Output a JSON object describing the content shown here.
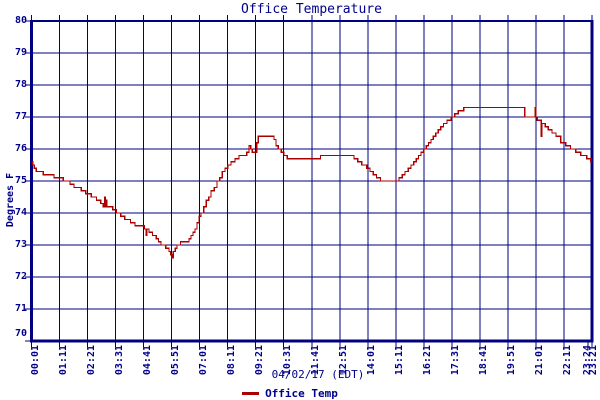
{
  "chart_data": {
    "type": "line",
    "line_style": "step-after",
    "title": "Office Temperature",
    "ylabel": "Degrees F",
    "xlabel": "04/02/17 (EDT)",
    "legend_position": "bottom-center",
    "legend": [
      "Office Temp"
    ],
    "grid": true,
    "ylim": [
      70,
      80
    ],
    "y_tick_interval": 1,
    "y_tick_labels": [
      "70",
      "71",
      "72",
      "73",
      "74",
      "75",
      "76",
      "77",
      "78",
      "79",
      "80"
    ],
    "x_start_minute": 1,
    "x_end_minute": 1400,
    "x_tick_interval_minutes": 70,
    "x_tick_labels": [
      "00:01",
      "01:11",
      "02:21",
      "03:31",
      "04:41",
      "05:51",
      "07:01",
      "08:11",
      "09:21",
      "10:31",
      "11:41",
      "12:51",
      "14:01",
      "15:11",
      "16:21",
      "17:31",
      "18:41",
      "19:51",
      "21:01",
      "22:11",
      "23:21"
    ],
    "x_overlap_end_label": "23:24",
    "colors": {
      "line": "#aa0000",
      "grid": "#000080",
      "frame": "#000080",
      "text": "#00008b",
      "background": "#ffffff"
    },
    "series": [
      {
        "name": "Office Temp",
        "units": "degrees F",
        "points_minute_temp": [
          [
            1,
            75.6
          ],
          [
            4,
            75.5
          ],
          [
            8,
            75.4
          ],
          [
            13,
            75.3
          ],
          [
            30,
            75.2
          ],
          [
            57,
            75.1
          ],
          [
            80,
            75.0
          ],
          [
            97,
            74.9
          ],
          [
            107,
            74.8
          ],
          [
            125,
            74.7
          ],
          [
            136,
            74.6
          ],
          [
            150,
            74.5
          ],
          [
            163,
            74.4
          ],
          [
            174,
            74.3
          ],
          [
            180,
            74.2
          ],
          [
            183,
            74.5
          ],
          [
            185,
            74.2
          ],
          [
            187,
            74.4
          ],
          [
            189,
            74.2
          ],
          [
            204,
            74.1
          ],
          [
            213,
            74.0
          ],
          [
            224,
            73.9
          ],
          [
            234,
            73.8
          ],
          [
            248,
            73.7
          ],
          [
            259,
            73.6
          ],
          [
            283,
            73.5
          ],
          [
            287,
            73.3
          ],
          [
            289,
            73.5
          ],
          [
            294,
            73.4
          ],
          [
            303,
            73.3
          ],
          [
            312,
            73.2
          ],
          [
            318,
            73.1
          ],
          [
            324,
            73.0
          ],
          [
            336,
            72.9
          ],
          [
            344,
            72.8
          ],
          [
            348,
            72.7
          ],
          [
            351,
            72.6
          ],
          [
            355,
            72.8
          ],
          [
            360,
            72.9
          ],
          [
            364,
            73.0
          ],
          [
            373,
            73.1
          ],
          [
            394,
            73.2
          ],
          [
            399,
            73.3
          ],
          [
            404,
            73.4
          ],
          [
            409,
            73.5
          ],
          [
            414,
            73.7
          ],
          [
            419,
            73.9
          ],
          [
            424,
            74.0
          ],
          [
            431,
            74.2
          ],
          [
            437,
            74.4
          ],
          [
            443,
            74.5
          ],
          [
            449,
            74.7
          ],
          [
            457,
            74.8
          ],
          [
            464,
            75.0
          ],
          [
            471,
            75.1
          ],
          [
            477,
            75.3
          ],
          [
            484,
            75.4
          ],
          [
            491,
            75.5
          ],
          [
            499,
            75.6
          ],
          [
            509,
            75.7
          ],
          [
            519,
            75.8
          ],
          [
            538,
            75.9
          ],
          [
            544,
            76.1
          ],
          [
            548,
            76.0
          ],
          [
            552,
            75.9
          ],
          [
            563,
            76.2
          ],
          [
            567,
            76.4
          ],
          [
            599,
            76.4
          ],
          [
            606,
            76.3
          ],
          [
            611,
            76.1
          ],
          [
            617,
            76.0
          ],
          [
            624,
            75.9
          ],
          [
            631,
            75.8
          ],
          [
            639,
            75.7
          ],
          [
            722,
            75.8
          ],
          [
            790,
            75.8
          ],
          [
            806,
            75.7
          ],
          [
            815,
            75.6
          ],
          [
            825,
            75.5
          ],
          [
            838,
            75.4
          ],
          [
            846,
            75.3
          ],
          [
            854,
            75.2
          ],
          [
            862,
            75.1
          ],
          [
            872,
            75.0
          ],
          [
            918,
            75.1
          ],
          [
            926,
            75.2
          ],
          [
            933,
            75.3
          ],
          [
            941,
            75.4
          ],
          [
            948,
            75.5
          ],
          [
            955,
            75.6
          ],
          [
            961,
            75.7
          ],
          [
            967,
            75.8
          ],
          [
            973,
            75.9
          ],
          [
            980,
            76.0
          ],
          [
            986,
            76.1
          ],
          [
            992,
            76.2
          ],
          [
            998,
            76.3
          ],
          [
            1004,
            76.4
          ],
          [
            1010,
            76.5
          ],
          [
            1016,
            76.6
          ],
          [
            1022,
            76.7
          ],
          [
            1029,
            76.8
          ],
          [
            1038,
            76.9
          ],
          [
            1048,
            77.0
          ],
          [
            1057,
            77.1
          ],
          [
            1066,
            77.2
          ],
          [
            1080,
            77.3
          ],
          [
            1228,
            77.3
          ],
          [
            1232,
            77.0
          ],
          [
            1256,
            77.0
          ],
          [
            1258,
            77.3
          ],
          [
            1260,
            77.0
          ],
          [
            1263,
            76.9
          ],
          [
            1273,
            76.4
          ],
          [
            1275,
            76.8
          ],
          [
            1283,
            76.7
          ],
          [
            1291,
            76.6
          ],
          [
            1300,
            76.5
          ],
          [
            1310,
            76.4
          ],
          [
            1322,
            76.2
          ],
          [
            1334,
            76.1
          ],
          [
            1346,
            76.0
          ],
          [
            1359,
            75.9
          ],
          [
            1372,
            75.8
          ],
          [
            1387,
            75.7
          ],
          [
            1397,
            75.6
          ],
          [
            1400,
            75.6
          ]
        ]
      }
    ]
  }
}
